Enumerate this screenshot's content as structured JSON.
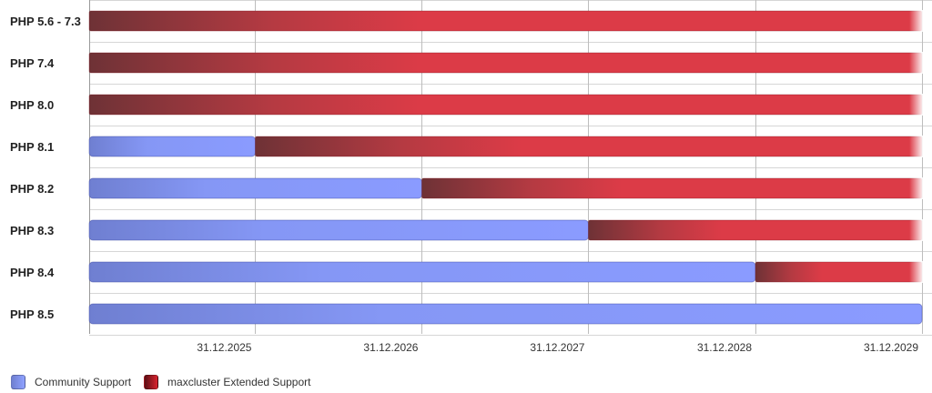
{
  "chart_data": {
    "type": "bar",
    "orientation": "horizontal",
    "categories": [
      "PHP 5.6 - 7.3",
      "PHP 7.4",
      "PHP 8.0",
      "PHP 8.1",
      "PHP 8.2",
      "PHP 8.3",
      "PHP 8.4",
      "PHP 8.5"
    ],
    "x_ticks": [
      "31.12.2025",
      "31.12.2026",
      "31.12.2027",
      "31.12.2028",
      "31.12.2029"
    ],
    "xlim": [
      "01.01.2025",
      "31.12.2029"
    ],
    "series": [
      {
        "name": "Community Support",
        "color": "#8a9bff",
        "ranges": [
          null,
          null,
          null,
          [
            "01.01.2025",
            "31.12.2025"
          ],
          [
            "01.01.2025",
            "31.12.2026"
          ],
          [
            "01.01.2025",
            "31.12.2027"
          ],
          [
            "01.01.2025",
            "31.12.2028"
          ],
          [
            "01.01.2025",
            "31.12.2029"
          ]
        ]
      },
      {
        "name": "maxcluster Extended Support",
        "color": "#dc3b47",
        "ranges": [
          [
            "01.01.2025",
            "31.12.2029"
          ],
          [
            "01.01.2025",
            "31.12.2029"
          ],
          [
            "01.01.2025",
            "31.12.2029"
          ],
          [
            "31.12.2025",
            "31.12.2029"
          ],
          [
            "31.12.2026",
            "31.12.2029"
          ],
          [
            "31.12.2027",
            "31.12.2029"
          ],
          [
            "31.12.2028",
            "31.12.2029"
          ],
          null
        ]
      }
    ],
    "grid": true,
    "legend_position": "bottom-left"
  },
  "legend": {
    "community_label": "Community Support",
    "extended_label": "maxcluster Extended Support"
  },
  "colors": {
    "community_start": "#6f7fd1",
    "community_end": "#8a9bff",
    "extended_start": "#6e3236",
    "extended_end": "#dc3b47",
    "grid": "#c8c8c8"
  }
}
